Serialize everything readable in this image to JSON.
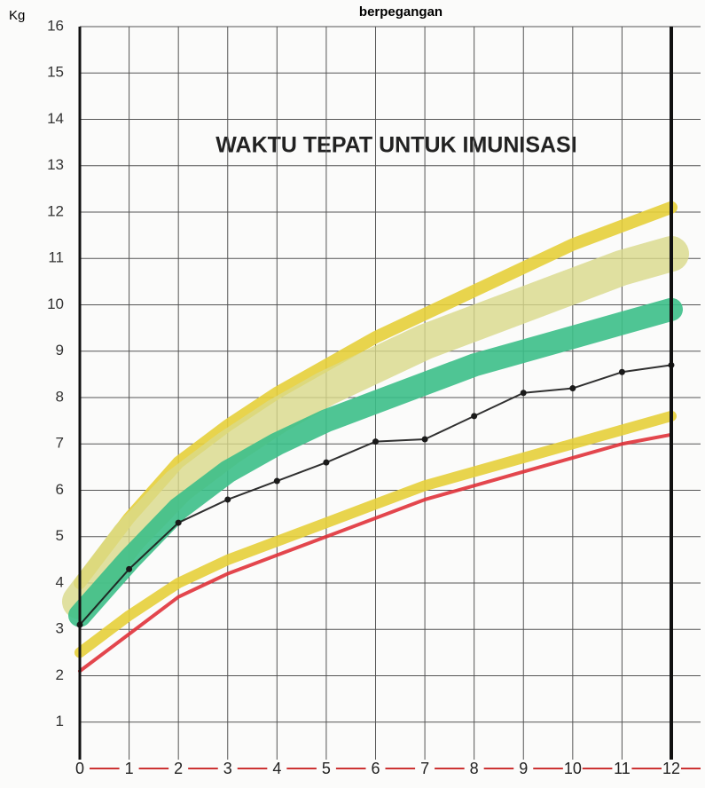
{
  "chart_data": {
    "type": "line",
    "title": "WAKTU TEPAT UNTUK IMUNISASI",
    "annotation": "berpegangan",
    "y_label": "Kg",
    "x": [
      0,
      1,
      2,
      3,
      4,
      5,
      6,
      7,
      8,
      9,
      10,
      11,
      12
    ],
    "xlim": [
      0,
      12
    ],
    "xticks": [
      0,
      1,
      2,
      3,
      4,
      5,
      6,
      7,
      8,
      9,
      10,
      11,
      12
    ],
    "ylim": [
      0,
      16
    ],
    "yticks": [
      1,
      2,
      3,
      4,
      5,
      6,
      7,
      8,
      9,
      10,
      11,
      12,
      13,
      14,
      15,
      16
    ],
    "grid": true,
    "series": [
      {
        "color": "#e6cf3a",
        "values": [
          4.0,
          5.4,
          6.6,
          7.4,
          8.1,
          8.7,
          9.3,
          9.8,
          10.3,
          10.8,
          11.3,
          11.7,
          12.1
        ]
      },
      {
        "color": "#d9d98a",
        "values": [
          3.6,
          5.0,
          6.1,
          6.9,
          7.6,
          8.2,
          8.7,
          9.2,
          9.6,
          10.0,
          10.4,
          10.8,
          11.1
        ]
      },
      {
        "color": "#3cbf88",
        "values": [
          3.3,
          4.5,
          5.6,
          6.4,
          7.0,
          7.5,
          7.9,
          8.3,
          8.7,
          9.0,
          9.3,
          9.6,
          9.9
        ]
      },
      {
        "color": "#e6cf3a",
        "values": [
          2.5,
          3.3,
          4.0,
          4.5,
          4.9,
          5.3,
          5.7,
          6.1,
          6.4,
          6.7,
          7.0,
          7.3,
          7.6
        ]
      },
      {
        "color": "#e0323a",
        "values": [
          2.1,
          2.9,
          3.7,
          4.2,
          4.6,
          5.0,
          5.4,
          5.8,
          6.1,
          6.4,
          6.7,
          7.0,
          7.2
        ]
      },
      {
        "color": "#1a1a1a",
        "values": [
          3.1,
          4.3,
          5.3,
          5.8,
          6.2,
          6.6,
          7.05,
          7.1,
          7.6,
          8.1,
          8.2,
          8.55,
          8.7
        ]
      }
    ]
  }
}
